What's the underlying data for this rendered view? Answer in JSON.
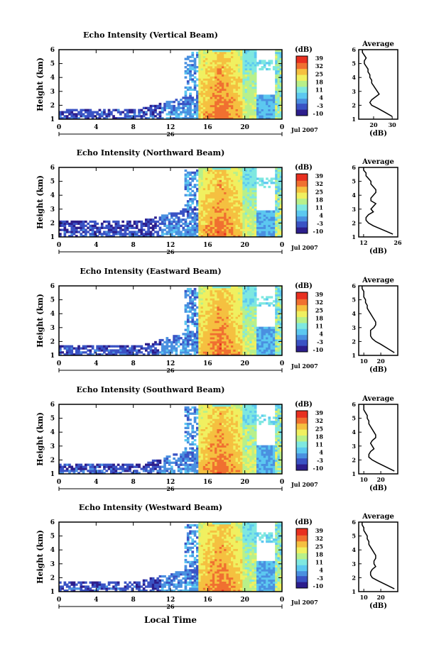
{
  "figure": {
    "x_axis_label": "Local Time",
    "date_label": "Jul 2007",
    "day_label": "26",
    "colorbar_unit": "(dB)",
    "colorbar_ticks": [
      "39",
      "32",
      "25",
      "18",
      "11",
      "4",
      "-3",
      "-10"
    ],
    "colorbar_range_db": [
      -10,
      39
    ],
    "profile_xlabel": "(dB)",
    "colors": [
      "#2d1e8c",
      "#3a53c4",
      "#4a90e0",
      "#5cc8f0",
      "#7fe8e0",
      "#b8f08a",
      "#f0f060",
      "#f5c040",
      "#f07030",
      "#e83020"
    ]
  },
  "chart_data": [
    {
      "type": "heatmap",
      "title": "Echo Intensity (Vertical Beam)",
      "xlabel": "",
      "ylabel": "Height (km)",
      "x_ticks": [
        "0",
        "4",
        "8",
        "12",
        "16",
        "20",
        "0"
      ],
      "xlim": [
        0,
        24
      ],
      "y_ticks": [
        "1",
        "2",
        "3",
        "4",
        "5",
        "6"
      ],
      "ylim": [
        1,
        6
      ],
      "profile": {
        "title": "Average",
        "xlabel": "(dB)",
        "x_ticks": [
          "20",
          "30"
        ],
        "xlim": [
          12,
          33
        ],
        "heights_km": [
          1.2,
          1.5,
          1.8,
          2.0,
          2.2,
          2.4,
          2.6,
          2.8,
          3.0,
          3.2,
          3.4,
          3.6,
          3.8,
          4.0,
          4.2,
          4.4,
          4.6,
          4.8,
          5.0,
          5.2,
          5.4,
          5.6,
          5.8,
          6.0
        ],
        "values_db": [
          30,
          26,
          22,
          19,
          18,
          19,
          21,
          23,
          22,
          21,
          20,
          19,
          19,
          18,
          18,
          17,
          17,
          16,
          15,
          15,
          16,
          15,
          14,
          14
        ]
      }
    },
    {
      "type": "heatmap",
      "title": "Echo Intensity (Northward Beam)",
      "xlabel": "",
      "ylabel": "Height (km)",
      "x_ticks": [
        "0",
        "4",
        "8",
        "12",
        "16",
        "20",
        "0"
      ],
      "xlim": [
        0,
        24
      ],
      "y_ticks": [
        "1",
        "2",
        "3",
        "4",
        "5",
        "6"
      ],
      "ylim": [
        1,
        6
      ],
      "profile": {
        "title": "Average",
        "xlabel": "(dB)",
        "x_ticks": [
          "12",
          "26"
        ],
        "xlim": [
          10,
          26
        ],
        "heights_km": [
          1.2,
          1.5,
          1.8,
          2.0,
          2.2,
          2.4,
          2.6,
          2.8,
          3.0,
          3.2,
          3.4,
          3.6,
          3.8,
          4.0,
          4.2,
          4.4,
          4.6,
          4.8,
          5.0,
          5.2,
          5.4,
          5.6,
          5.8,
          6.0
        ],
        "values_db": [
          24,
          20,
          16,
          14,
          13,
          13,
          14,
          16,
          15,
          16,
          17,
          15,
          15,
          16,
          17,
          17,
          16,
          15,
          15,
          14,
          13,
          13,
          12,
          12
        ]
      }
    },
    {
      "type": "heatmap",
      "title": "Echo Intensity (Eastward Beam)",
      "xlabel": "",
      "ylabel": "Height (km)",
      "x_ticks": [
        "0",
        "4",
        "8",
        "12",
        "16",
        "20",
        "0"
      ],
      "xlim": [
        0,
        24
      ],
      "y_ticks": [
        "1",
        "2",
        "3",
        "4",
        "5",
        "6"
      ],
      "ylim": [
        1,
        6
      ],
      "profile": {
        "title": "Average",
        "xlabel": "(dB)",
        "x_ticks": [
          "10",
          "20"
        ],
        "xlim": [
          7,
          30
        ],
        "heights_km": [
          1.2,
          1.5,
          1.8,
          2.0,
          2.2,
          2.4,
          2.6,
          2.8,
          3.0,
          3.2,
          3.4,
          3.6,
          3.8,
          4.0,
          4.2,
          4.4,
          4.6,
          4.8,
          5.0,
          5.2,
          5.4,
          5.6,
          5.8,
          6.0
        ],
        "values_db": [
          28,
          24,
          20,
          17,
          15,
          14,
          14,
          14,
          16,
          17,
          17,
          16,
          15,
          14,
          13,
          12,
          12,
          11,
          11,
          10,
          10,
          10,
          9,
          9
        ]
      }
    },
    {
      "type": "heatmap",
      "title": "Echo Intensity (Southward Beam)",
      "xlabel": "",
      "ylabel": "Height (km)",
      "x_ticks": [
        "0",
        "4",
        "8",
        "12",
        "16",
        "20",
        "0"
      ],
      "xlim": [
        0,
        24
      ],
      "y_ticks": [
        "1",
        "2",
        "3",
        "4",
        "5",
        "6"
      ],
      "ylim": [
        1,
        6
      ],
      "profile": {
        "title": "Average",
        "xlabel": "(dB)",
        "x_ticks": [
          "10",
          "20"
        ],
        "xlim": [
          7,
          30
        ],
        "heights_km": [
          1.2,
          1.5,
          1.8,
          2.0,
          2.2,
          2.4,
          2.6,
          2.8,
          3.0,
          3.2,
          3.4,
          3.6,
          3.8,
          4.0,
          4.2,
          4.4,
          4.6,
          4.8,
          5.0,
          5.2,
          5.4,
          5.6,
          5.8,
          6.0
        ],
        "values_db": [
          28,
          23,
          18,
          15,
          13,
          13,
          14,
          16,
          15,
          14,
          15,
          17,
          17,
          16,
          15,
          14,
          13,
          13,
          12,
          12,
          11,
          10,
          10,
          10
        ]
      }
    },
    {
      "type": "heatmap",
      "title": "Echo Intensity (Westward Beam)",
      "xlabel": "Local Time",
      "ylabel": "Height (km)",
      "x_ticks": [
        "0",
        "4",
        "8",
        "12",
        "16",
        "20",
        "0"
      ],
      "xlim": [
        0,
        24
      ],
      "y_ticks": [
        "1",
        "2",
        "3",
        "4",
        "5",
        "6"
      ],
      "ylim": [
        1,
        6
      ],
      "profile": {
        "title": "Average",
        "xlabel": "(dB)",
        "x_ticks": [
          "10",
          "20"
        ],
        "xlim": [
          7,
          30
        ],
        "heights_km": [
          1.2,
          1.5,
          1.8,
          2.0,
          2.2,
          2.4,
          2.6,
          2.8,
          3.0,
          3.2,
          3.4,
          3.6,
          3.8,
          4.0,
          4.2,
          4.4,
          4.6,
          4.8,
          5.0,
          5.2,
          5.4,
          5.6,
          5.8,
          6.0
        ],
        "values_db": [
          28,
          23,
          18,
          15,
          14,
          14,
          15,
          17,
          16,
          16,
          17,
          17,
          16,
          15,
          14,
          13,
          13,
          12,
          12,
          11,
          10,
          10,
          9,
          9
        ]
      }
    }
  ]
}
